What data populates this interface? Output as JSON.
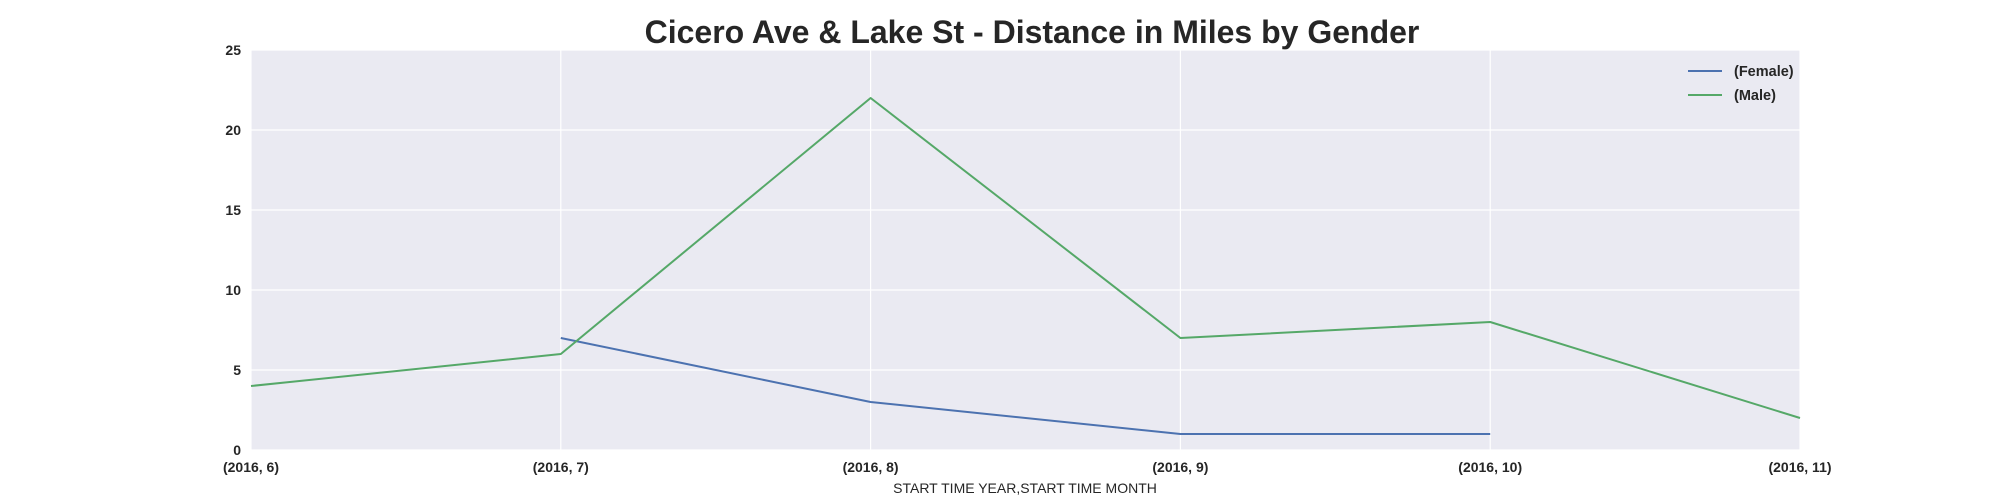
{
  "chart_data": {
    "type": "line",
    "title": "Cicero Ave & Lake St - Distance in Miles by Gender",
    "xlabel": "START TIME YEAR,START TIME MONTH",
    "ylabel": "",
    "categories": [
      "(2016, 6)",
      "(2016, 7)",
      "(2016, 8)",
      "(2016, 9)",
      "(2016, 10)",
      "(2016, 11)"
    ],
    "ylim": [
      0,
      25
    ],
    "yticks": [
      "0",
      "5",
      "10",
      "15",
      "20",
      "25"
    ],
    "grid": true,
    "legend_position": "top-right",
    "series": [
      {
        "name": "(Female)",
        "color": "#4c72b0",
        "values": [
          null,
          7,
          3,
          1,
          1,
          null
        ]
      },
      {
        "name": "(Male)",
        "color": "#55a868",
        "values": [
          4,
          6,
          22,
          7,
          8,
          2
        ]
      }
    ],
    "colors": {
      "plot_background": "#eaeaf2",
      "grid": "#ffffff",
      "text": "#262626"
    }
  }
}
